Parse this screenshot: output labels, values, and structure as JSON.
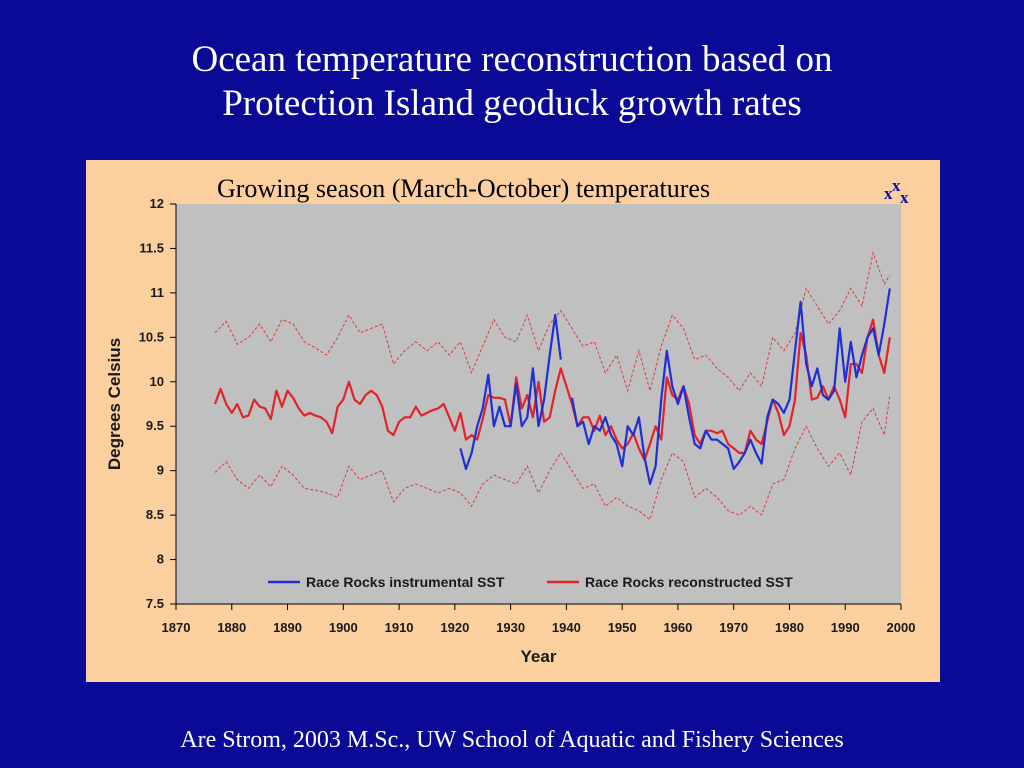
{
  "slide": {
    "title_line1": "Ocean temperature reconstruction based on",
    "title_line2": "Protection Island geoduck growth rates",
    "footer": "Are Strom, 2003 M.Sc., UW School of Aquatic and Fishery Sciences"
  },
  "chart_data": {
    "type": "line",
    "title": "Growing season (March-October) temperatures",
    "xlabel": "Year",
    "ylabel": "Degrees Celsius",
    "xlim": [
      1870,
      2000
    ],
    "ylim": [
      7.5,
      12
    ],
    "xticks": [
      "1870",
      "1880",
      "1890",
      "1900",
      "1910",
      "1920",
      "1930",
      "1940",
      "1950",
      "1960",
      "1970",
      "1980",
      "1990",
      "2000"
    ],
    "yticks": [
      "7.5",
      "8",
      "8.5",
      "9",
      "9.5",
      "10",
      "10.5",
      "11",
      "11.5",
      "12"
    ],
    "legend_position": "bottom-inside",
    "colors": {
      "instrumental": "#1f2fd6",
      "reconstructed": "#e0242a",
      "background": "#c0c0c0",
      "panel": "#fccf9e"
    },
    "annotation_marks": [
      "x",
      "x",
      "x"
    ],
    "series": [
      {
        "name": "Race Rocks instrumental SST",
        "key": "instrumental",
        "style": "solid",
        "segments": [
          {
            "x": [
              1921,
              1922,
              1923,
              1924,
              1925,
              1926,
              1927,
              1928,
              1929,
              1930,
              1931,
              1932,
              1933,
              1934,
              1935,
              1936,
              1937,
              1938,
              1939
            ],
            "y": [
              9.25,
              9.02,
              9.2,
              9.5,
              9.7,
              10.08,
              9.5,
              9.72,
              9.5,
              9.5,
              9.98,
              9.5,
              9.6,
              10.15,
              9.5,
              9.8,
              10.3,
              10.75,
              10.25
            ]
          },
          {
            "x": [
              1941,
              1942,
              1943,
              1944,
              1945,
              1946,
              1947,
              1948,
              1949,
              1950,
              1951,
              1952,
              1953,
              1954,
              1955,
              1956,
              1957,
              1958,
              1959,
              1960,
              1961,
              1962,
              1963,
              1964,
              1965,
              1966,
              1967,
              1968,
              1969,
              1970,
              1971,
              1972,
              1973,
              1974,
              1975,
              1976,
              1977,
              1978,
              1979,
              1980,
              1981,
              1982,
              1983,
              1984,
              1985,
              1986,
              1987,
              1988,
              1989,
              1990,
              1991,
              1992,
              1993,
              1994,
              1995,
              1996,
              1997,
              1998
            ],
            "y": [
              9.82,
              9.5,
              9.55,
              9.3,
              9.5,
              9.45,
              9.6,
              9.4,
              9.3,
              9.05,
              9.5,
              9.4,
              9.6,
              9.15,
              8.85,
              9.05,
              9.8,
              10.35,
              9.95,
              9.75,
              9.95,
              9.6,
              9.3,
              9.25,
              9.45,
              9.35,
              9.35,
              9.3,
              9.25,
              9.02,
              9.1,
              9.2,
              9.35,
              9.2,
              9.08,
              9.6,
              9.8,
              9.75,
              9.65,
              9.8,
              10.35,
              10.9,
              10.2,
              9.95,
              10.15,
              9.85,
              9.8,
              9.9,
              10.6,
              10.0,
              10.45,
              10.05,
              10.3,
              10.5,
              10.6,
              10.3,
              10.65,
              11.05
            ]
          }
        ]
      },
      {
        "name": "Race Rocks reconstructed SST",
        "key": "reconstructed",
        "style": "solid",
        "x": [
          1877,
          1878,
          1879,
          1880,
          1881,
          1882,
          1883,
          1884,
          1885,
          1886,
          1887,
          1888,
          1889,
          1890,
          1891,
          1892,
          1893,
          1894,
          1895,
          1896,
          1897,
          1898,
          1899,
          1900,
          1901,
          1902,
          1903,
          1904,
          1905,
          1906,
          1907,
          1908,
          1909,
          1910,
          1911,
          1912,
          1913,
          1914,
          1915,
          1916,
          1917,
          1918,
          1919,
          1920,
          1921,
          1922,
          1923,
          1924,
          1925,
          1926,
          1927,
          1928,
          1929,
          1930,
          1931,
          1932,
          1933,
          1934,
          1935,
          1936,
          1937,
          1938,
          1939,
          1940,
          1941,
          1942,
          1943,
          1944,
          1945,
          1946,
          1947,
          1948,
          1949,
          1950,
          1951,
          1952,
          1953,
          1954,
          1955,
          1956,
          1957,
          1958,
          1959,
          1960,
          1961,
          1962,
          1963,
          1964,
          1965,
          1966,
          1967,
          1968,
          1969,
          1970,
          1971,
          1972,
          1973,
          1974,
          1975,
          1976,
          1977,
          1978,
          1979,
          1980,
          1981,
          1982,
          1983,
          1984,
          1985,
          1986,
          1987,
          1988,
          1989,
          1990,
          1991,
          1992,
          1993,
          1994,
          1995,
          1996,
          1997,
          1998
        ],
        "y": [
          9.75,
          9.92,
          9.75,
          9.65,
          9.75,
          9.6,
          9.62,
          9.8,
          9.72,
          9.7,
          9.58,
          9.9,
          9.72,
          9.9,
          9.82,
          9.7,
          9.62,
          9.65,
          9.62,
          9.6,
          9.55,
          9.42,
          9.72,
          9.8,
          10.0,
          9.8,
          9.75,
          9.85,
          9.9,
          9.85,
          9.72,
          9.45,
          9.4,
          9.55,
          9.6,
          9.6,
          9.72,
          9.62,
          9.65,
          9.68,
          9.7,
          9.75,
          9.6,
          9.45,
          9.65,
          9.35,
          9.4,
          9.35,
          9.58,
          9.85,
          9.82,
          9.82,
          9.8,
          9.5,
          10.05,
          9.7,
          9.85,
          9.6,
          10.0,
          9.55,
          9.6,
          9.9,
          10.15,
          9.95,
          9.75,
          9.5,
          9.6,
          9.6,
          9.45,
          9.62,
          9.4,
          9.5,
          9.35,
          9.25,
          9.3,
          9.42,
          9.25,
          9.12,
          9.3,
          9.5,
          9.35,
          10.05,
          9.85,
          9.8,
          9.95,
          9.75,
          9.4,
          9.3,
          9.45,
          9.45,
          9.42,
          9.45,
          9.3,
          9.25,
          9.2,
          9.2,
          9.45,
          9.35,
          9.3,
          9.55,
          9.8,
          9.65,
          9.4,
          9.5,
          9.8,
          10.55,
          10.3,
          9.8,
          9.82,
          9.95,
          9.8,
          9.95,
          9.8,
          9.6,
          10.2,
          10.2,
          10.1,
          10.5,
          10.7,
          10.3,
          10.1,
          10.5
        ]
      },
      {
        "name": "",
        "key": "upper_band",
        "style": "dashed",
        "x": [
          1877,
          1879,
          1881,
          1883,
          1885,
          1887,
          1889,
          1891,
          1893,
          1895,
          1897,
          1899,
          1901,
          1903,
          1905,
          1907,
          1909,
          1911,
          1913,
          1915,
          1917,
          1919,
          1921,
          1923,
          1925,
          1927,
          1929,
          1931,
          1933,
          1935,
          1937,
          1939,
          1941,
          1943,
          1945,
          1947,
          1949,
          1951,
          1953,
          1955,
          1957,
          1959,
          1961,
          1963,
          1965,
          1967,
          1969,
          1971,
          1973,
          1975,
          1977,
          1979,
          1981,
          1983,
          1985,
          1987,
          1989,
          1991,
          1993,
          1995,
          1997,
          1998
        ],
        "y": [
          10.55,
          10.68,
          10.42,
          10.5,
          10.65,
          10.45,
          10.7,
          10.65,
          10.45,
          10.38,
          10.3,
          10.5,
          10.75,
          10.55,
          10.6,
          10.65,
          10.2,
          10.35,
          10.45,
          10.35,
          10.45,
          10.3,
          10.45,
          10.1,
          10.4,
          10.7,
          10.5,
          10.45,
          10.75,
          10.35,
          10.65,
          10.8,
          10.6,
          10.4,
          10.45,
          10.1,
          10.3,
          9.9,
          10.35,
          9.9,
          10.4,
          10.75,
          10.6,
          10.25,
          10.3,
          10.15,
          10.05,
          9.9,
          10.1,
          9.95,
          10.5,
          10.35,
          10.55,
          11.05,
          10.85,
          10.65,
          10.8,
          11.05,
          10.85,
          11.45,
          11.1,
          11.2
        ]
      },
      {
        "name": "",
        "key": "lower_band",
        "style": "dashed",
        "x": [
          1877,
          1879,
          1881,
          1883,
          1885,
          1887,
          1889,
          1891,
          1893,
          1895,
          1897,
          1899,
          1901,
          1903,
          1905,
          1907,
          1909,
          1911,
          1913,
          1915,
          1917,
          1919,
          1921,
          1923,
          1925,
          1927,
          1929,
          1931,
          1933,
          1935,
          1937,
          1939,
          1941,
          1943,
          1945,
          1947,
          1949,
          1951,
          1953,
          1955,
          1957,
          1959,
          1961,
          1963,
          1965,
          1967,
          1969,
          1971,
          1973,
          1975,
          1977,
          1979,
          1981,
          1983,
          1985,
          1987,
          1989,
          1991,
          1993,
          1995,
          1997,
          1998
        ],
        "y": [
          8.98,
          9.1,
          8.9,
          8.8,
          8.95,
          8.82,
          9.05,
          8.95,
          8.8,
          8.78,
          8.75,
          8.7,
          9.05,
          8.9,
          8.95,
          9.0,
          8.65,
          8.8,
          8.85,
          8.8,
          8.75,
          8.8,
          8.75,
          8.6,
          8.85,
          8.95,
          8.9,
          8.85,
          9.05,
          8.75,
          9.0,
          9.2,
          9.0,
          8.8,
          8.85,
          8.6,
          8.7,
          8.6,
          8.55,
          8.45,
          8.9,
          9.2,
          9.1,
          8.7,
          8.8,
          8.7,
          8.55,
          8.5,
          8.6,
          8.5,
          8.85,
          8.9,
          9.25,
          9.5,
          9.25,
          9.05,
          9.2,
          8.95,
          9.55,
          9.7,
          9.4,
          9.85
        ]
      }
    ]
  }
}
